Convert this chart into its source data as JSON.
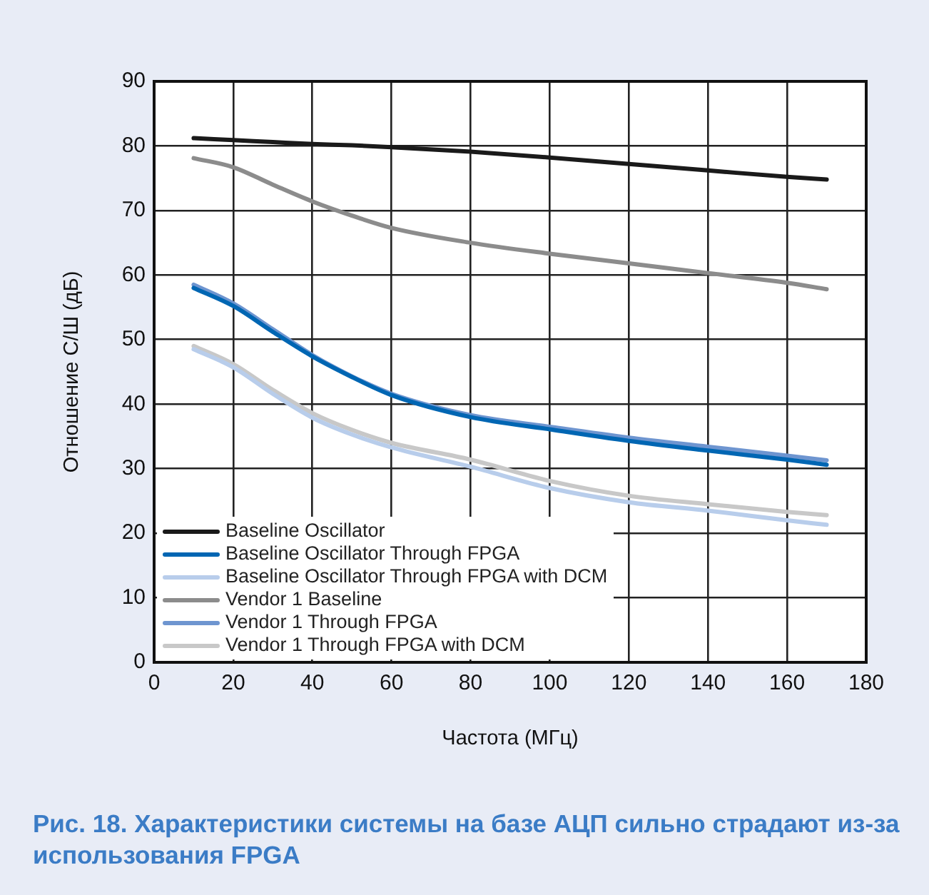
{
  "chart_data": {
    "type": "line",
    "xlabel": "Частота (МГц)",
    "ylabel": "Отношение С/Ш (дБ)",
    "xlim": [
      0,
      180
    ],
    "xticks": [
      0,
      20,
      40,
      60,
      80,
      100,
      120,
      140,
      160,
      180
    ],
    "ylim": [
      0,
      90
    ],
    "yticks": [
      0,
      10,
      20,
      30,
      40,
      50,
      60,
      70,
      80,
      90
    ],
    "grid": true,
    "legend": "bottom left",
    "marker": "none",
    "line_style": "solid",
    "x": [
      10,
      20,
      30,
      40,
      50,
      60,
      80,
      100,
      120,
      140,
      160,
      170
    ],
    "series": [
      {
        "name": "Baseline Oscillator",
        "color": "#1a1a1a",
        "values": [
          81.2,
          80.9,
          80.6,
          80.3,
          80.1,
          79.8,
          79.1,
          78.2,
          77.2,
          76.2,
          75.2,
          74.8
        ]
      },
      {
        "name": "Baseline Oscillator Through FPGA",
        "color": "#0066b3",
        "values": [
          58.0,
          55.2,
          51.2,
          47.4,
          44.2,
          41.4,
          38.0,
          36.1,
          34.3,
          32.8,
          31.4,
          30.6
        ]
      },
      {
        "name": "Baseline Oscillator Through FPGA with DCM",
        "color": "#b8cdeb",
        "values": [
          48.5,
          45.7,
          41.6,
          37.9,
          35.3,
          33.3,
          30.3,
          27.0,
          24.8,
          23.5,
          22.0,
          21.3
        ]
      },
      {
        "name": "Vendor 1 Baseline",
        "color": "#8c8c8c",
        "values": [
          78.1,
          76.7,
          74.0,
          71.4,
          69.2,
          67.3,
          65.0,
          63.3,
          61.8,
          60.3,
          58.8,
          57.8
        ]
      },
      {
        "name": "Vendor 1 Through FPGA",
        "color": "#6e95d0",
        "values": [
          58.5,
          55.6,
          51.6,
          47.6,
          44.3,
          41.6,
          38.3,
          36.5,
          34.8,
          33.4,
          32.0,
          31.3
        ]
      },
      {
        "name": "Vendor 1 Through FPGA with DCM",
        "color": "#c8c8c8",
        "values": [
          49.0,
          46.2,
          42.2,
          38.6,
          36.0,
          34.0,
          31.4,
          28.1,
          25.8,
          24.5,
          23.3,
          22.8
        ]
      }
    ],
    "annotations": [
      "Рис. 18. Характеристики системы на базе АЦП сильно страдают из-за использования FPGA"
    ]
  }
}
